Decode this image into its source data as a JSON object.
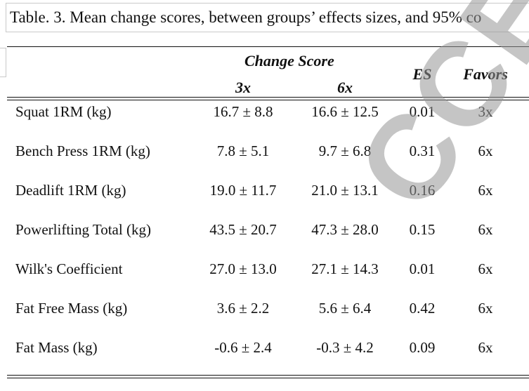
{
  "caption": "Table. 3.  Mean change scores, between groups’ effects sizes, and 95% co",
  "header": {
    "change_score": "Change Score",
    "col_3x": "3x",
    "col_6x": "6x",
    "es": "ES",
    "favors": "Favors"
  },
  "rows": [
    {
      "label": "Squat 1RM (kg)",
      "v3x": "16.7 ± 8.8",
      "v6x": "16.6 ± 12.5",
      "es": "0.01",
      "favors": "3x"
    },
    {
      "label": "Bench Press 1RM (kg)",
      "v3x": "7.8 ± 5.1",
      "v6x": "9.7 ± 6.8",
      "es": "0.31",
      "favors": "6x"
    },
    {
      "label": "Deadlift 1RM (kg)",
      "v3x": "19.0 ± 11.7",
      "v6x": "21.0 ± 13.1",
      "es": "0.16",
      "favors": "6x"
    },
    {
      "label": "Powerlifting Total (kg)",
      "v3x": "43.5 ± 20.7",
      "v6x": "47.3 ± 28.0",
      "es": "0.15",
      "favors": "6x"
    },
    {
      "label": "Wilk's Coefficient",
      "v3x": "27.0 ± 13.0",
      "v6x": "27.1 ± 14.3",
      "es": "0.01",
      "favors": "6x"
    },
    {
      "label": "Fat Free Mass (kg)",
      "v3x": "3.6 ± 2.2",
      "v6x": "5.6 ± 6.4",
      "es": "0.42",
      "favors": "6x"
    },
    {
      "label": "Fat Mass (kg)",
      "v3x": "-0.6 ± 2.4",
      "v6x": "-0.3 ± 4.2",
      "es": "0.09",
      "favors": "6x"
    }
  ],
  "watermark": "CCEP"
}
